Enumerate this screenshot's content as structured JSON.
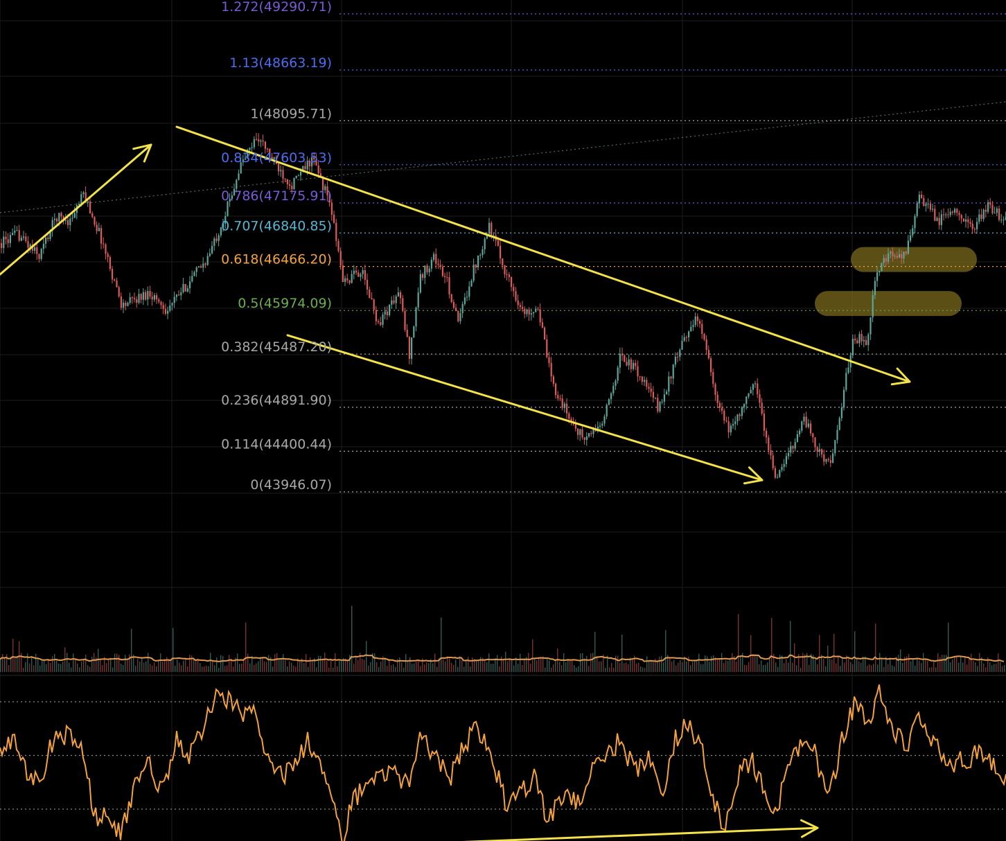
{
  "colors": {
    "background": "#000000",
    "grid": "#1e1e1e",
    "bull": "#5aa79b",
    "bear": "#e05a5a",
    "drawing": "#f3e24a",
    "oscillator": "#f5a23c",
    "volume_ma": "#e09a50",
    "highlight": "#7a6a1e"
  },
  "fib_levels": [
    {
      "label": "1.272(49290.71)",
      "price": 49290.71,
      "color": "#7a5ad6"
    },
    {
      "label": "1.13(48663.19)",
      "price": 48663.19,
      "color": "#4a6ef0"
    },
    {
      "label": "1(48095.71)",
      "price": 48095.71,
      "color": "#a8a8a8"
    },
    {
      "label": "0.834(47603.53)",
      "price": 47603.53,
      "color": "#4a6ef0"
    },
    {
      "label": "0.786(47175.91)",
      "price": 47175.91,
      "color": "#7a5ad6"
    },
    {
      "label": "0.707(46840.85)",
      "price": 46840.85,
      "color": "#55b6d2"
    },
    {
      "label": "0.618(46466.20)",
      "price": 46466.2,
      "color": "#f5a23c"
    },
    {
      "label": "0.5(45974.09)",
      "price": 45974.09,
      "color": "#6ab04c"
    },
    {
      "label": "0.382(45487.20)",
      "price": 45487.2,
      "color": "#a8a8a8"
    },
    {
      "label": "0.236(44891.90)",
      "price": 44891.9,
      "color": "#a8a8a8"
    },
    {
      "label": "0.114(44400.44)",
      "price": 44400.44,
      "color": "#a8a8a8"
    },
    {
      "label": "0(43946.07)",
      "price": 43946.07,
      "color": "#a8a8a8"
    }
  ],
  "chart_data": {
    "type": "candlestick",
    "price_pane": {
      "ylim": [
        43750,
        49300
      ],
      "price_path": [
        [
          0,
          46650
        ],
        [
          25,
          46750
        ],
        [
          55,
          46500
        ],
        [
          80,
          46950
        ],
        [
          100,
          46900
        ],
        [
          120,
          47200
        ],
        [
          145,
          46700
        ],
        [
          175,
          45950
        ],
        [
          215,
          46100
        ],
        [
          240,
          45900
        ],
        [
          270,
          46200
        ],
        [
          300,
          46500
        ],
        [
          325,
          47000
        ],
        [
          345,
          47500
        ],
        [
          370,
          47850
        ],
        [
          395,
          47550
        ],
        [
          420,
          47300
        ],
        [
          450,
          47600
        ],
        [
          475,
          47100
        ],
        [
          495,
          46200
        ],
        [
          520,
          46350
        ],
        [
          545,
          45750
        ],
        [
          575,
          46100
        ],
        [
          590,
          45400
        ],
        [
          605,
          46250
        ],
        [
          625,
          46500
        ],
        [
          645,
          46200
        ],
        [
          660,
          45750
        ],
        [
          680,
          46300
        ],
        [
          705,
          46850
        ],
        [
          730,
          46300
        ],
        [
          755,
          45850
        ],
        [
          775,
          45950
        ],
        [
          795,
          45100
        ],
        [
          820,
          44700
        ],
        [
          842,
          44450
        ],
        [
          870,
          44650
        ],
        [
          895,
          45400
        ],
        [
          920,
          45200
        ],
        [
          950,
          44800
        ],
        [
          975,
          45350
        ],
        [
          1000,
          45800
        ],
        [
          1015,
          45650
        ],
        [
          1030,
          44950
        ],
        [
          1050,
          44550
        ],
        [
          1070,
          44800
        ],
        [
          1090,
          45100
        ],
        [
          1105,
          44450
        ],
        [
          1120,
          44000
        ],
        [
          1140,
          44350
        ],
        [
          1160,
          44700
        ],
        [
          1180,
          44300
        ],
        [
          1200,
          44200
        ],
        [
          1215,
          44900
        ],
        [
          1230,
          45600
        ],
        [
          1250,
          45550
        ],
        [
          1262,
          46250
        ],
        [
          1280,
          46500
        ],
        [
          1305,
          46500
        ],
        [
          1325,
          47150
        ],
        [
          1355,
          46900
        ],
        [
          1380,
          47050
        ],
        [
          1400,
          46800
        ],
        [
          1425,
          47050
        ],
        [
          1452,
          46900
        ]
      ]
    },
    "volume_pane": {
      "ma_line": true
    },
    "oscillator_pane": {
      "reference_levels": [
        70,
        50,
        30
      ],
      "path": [
        [
          0,
          52
        ],
        [
          20,
          55
        ],
        [
          40,
          44
        ],
        [
          60,
          40
        ],
        [
          75,
          55
        ],
        [
          95,
          58
        ],
        [
          120,
          52
        ],
        [
          135,
          28
        ],
        [
          155,
          27
        ],
        [
          175,
          21
        ],
        [
          195,
          39
        ],
        [
          215,
          46
        ],
        [
          235,
          37
        ],
        [
          255,
          56
        ],
        [
          275,
          50
        ],
        [
          295,
          62
        ],
        [
          315,
          74
        ],
        [
          330,
          71
        ],
        [
          350,
          66
        ],
        [
          370,
          68
        ],
        [
          385,
          48
        ],
        [
          405,
          43
        ],
        [
          425,
          45
        ],
        [
          445,
          56
        ],
        [
          470,
          42
        ],
        [
          495,
          16
        ],
        [
          505,
          30
        ],
        [
          525,
          40
        ],
        [
          545,
          42
        ],
        [
          565,
          45
        ],
        [
          590,
          38
        ],
        [
          605,
          56
        ],
        [
          625,
          52
        ],
        [
          650,
          42
        ],
        [
          670,
          54
        ],
        [
          690,
          60
        ],
        [
          710,
          50
        ],
        [
          730,
          32
        ],
        [
          750,
          36
        ],
        [
          770,
          42
        ],
        [
          790,
          27
        ],
        [
          815,
          34
        ],
        [
          835,
          32
        ],
        [
          855,
          44
        ],
        [
          875,
          50
        ],
        [
          895,
          56
        ],
        [
          915,
          44
        ],
        [
          935,
          50
        ],
        [
          955,
          34
        ],
        [
          975,
          56
        ],
        [
          995,
          62
        ],
        [
          1015,
          50
        ],
        [
          1030,
          34
        ],
        [
          1045,
          22
        ],
        [
          1065,
          42
        ],
        [
          1085,
          48
        ],
        [
          1105,
          36
        ],
        [
          1115,
          25
        ],
        [
          1135,
          42
        ],
        [
          1155,
          54
        ],
        [
          1175,
          52
        ],
        [
          1195,
          32
        ],
        [
          1215,
          55
        ],
        [
          1235,
          71
        ],
        [
          1250,
          61
        ],
        [
          1270,
          73
        ],
        [
          1290,
          58
        ],
        [
          1310,
          54
        ],
        [
          1325,
          66
        ],
        [
          1345,
          55
        ],
        [
          1370,
          47
        ],
        [
          1395,
          49
        ],
        [
          1420,
          51
        ],
        [
          1452,
          40
        ]
      ]
    }
  },
  "drawings": {
    "upper_channel": {
      "from": [
        255,
        47950
      ],
      "to": [
        1313,
        45100
      ]
    },
    "lower_channel": {
      "from": [
        415,
        45620
      ],
      "to": [
        1100,
        44000
      ]
    },
    "uptrend_arrow": {
      "from": [
        0,
        46300
      ],
      "to": [
        218,
        47750
      ]
    },
    "faint_trendline": {
      "from": [
        0,
        46990
      ],
      "to": [
        1452,
        48230
      ]
    },
    "highlight_zones": [
      {
        "from_x": 1228,
        "to_x": 1410,
        "price": 46466.2
      },
      {
        "from_x": 1176,
        "to_x": 1388,
        "price": 45974.09
      }
    ],
    "divergence_arrow": {
      "from": [
        498,
        16
      ],
      "to": [
        1180,
        23
      ]
    }
  }
}
